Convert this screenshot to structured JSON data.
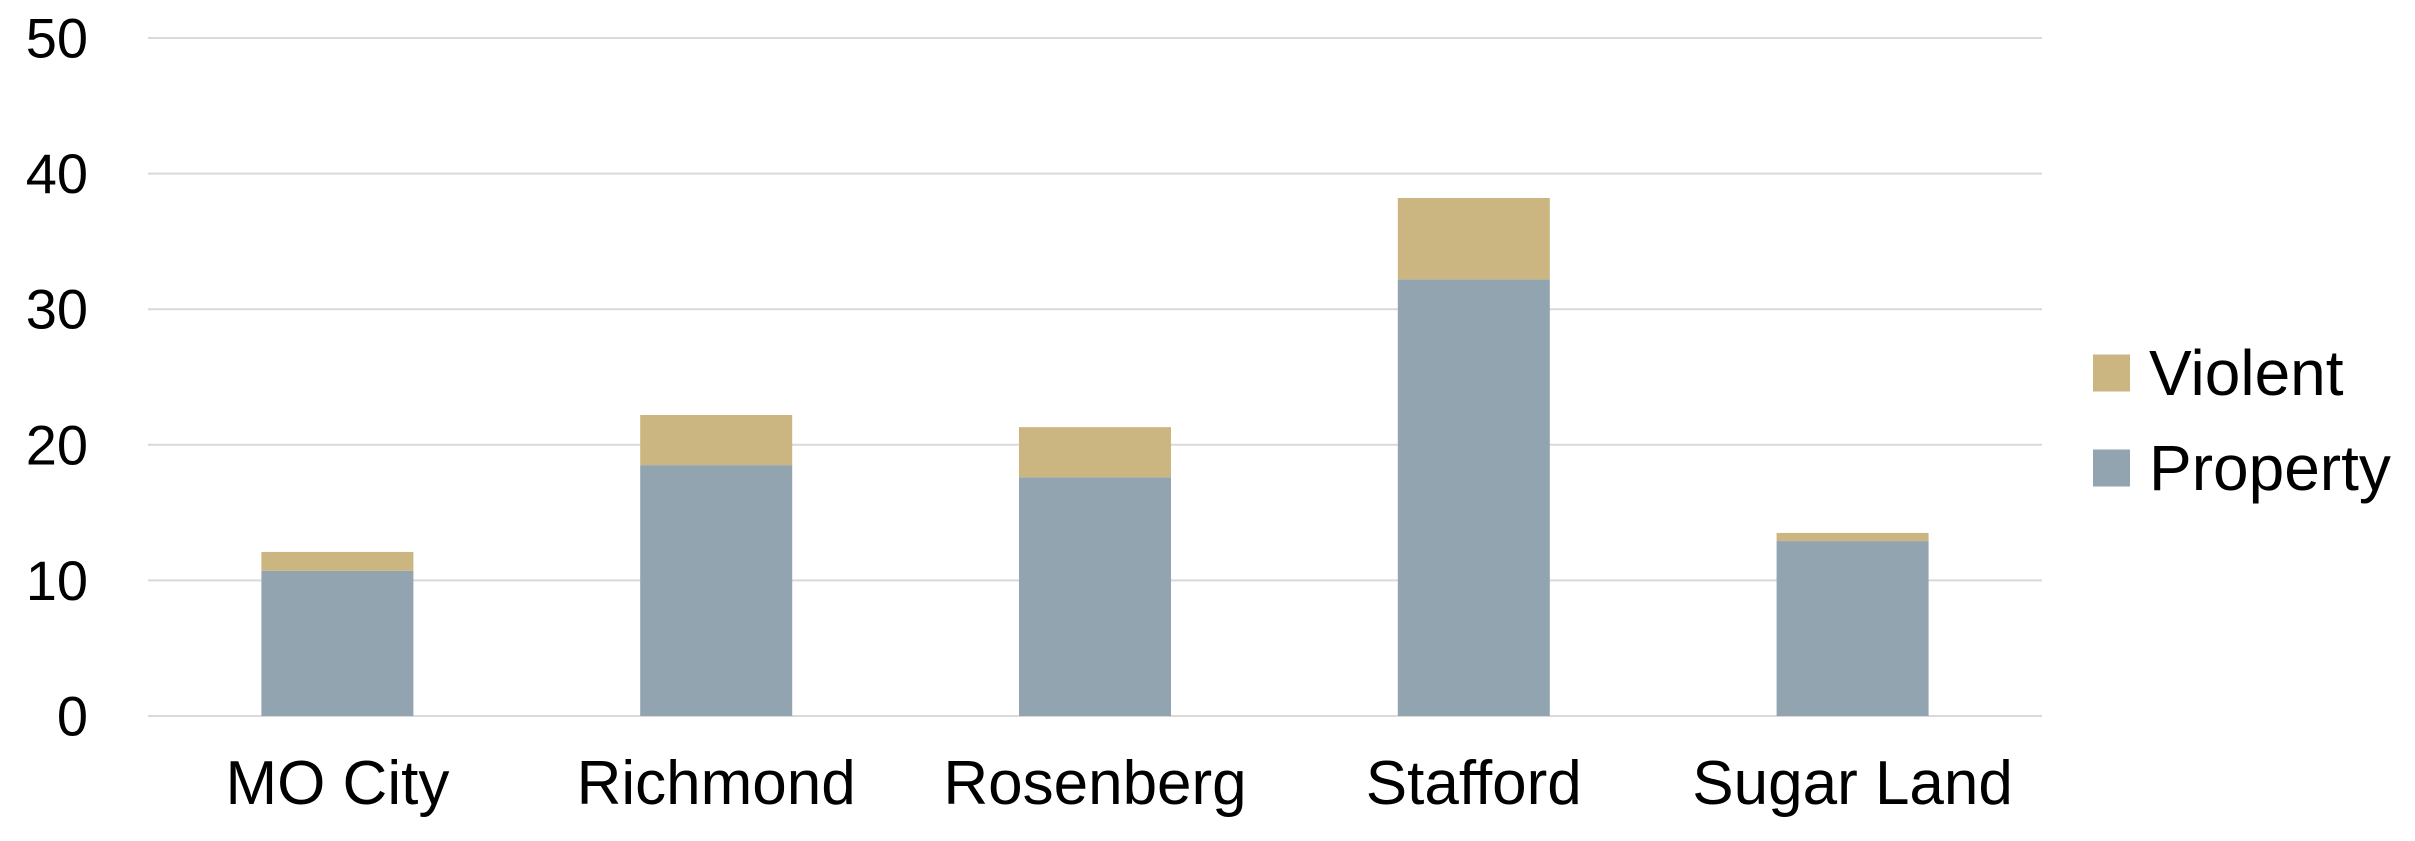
{
  "chart_data": {
    "type": "bar",
    "stacked": true,
    "title": "",
    "xlabel": "",
    "ylabel": "",
    "categories": [
      "MO City",
      "Richmond",
      "Rosenberg",
      "Stafford",
      "Sugar Land"
    ],
    "series": [
      {
        "name": "Property",
        "values": [
          10.7,
          18.5,
          17.6,
          32.2,
          12.9
        ],
        "color": "#91a4b0"
      },
      {
        "name": "Violent",
        "values": [
          1.4,
          3.7,
          3.7,
          6.0,
          0.6
        ],
        "color": "#cbb682"
      }
    ],
    "ylim": [
      0,
      50
    ],
    "yticks": [
      "0",
      "10",
      "20",
      "30",
      "40",
      "50"
    ],
    "grid": true,
    "gridColor": "#d9d9d9",
    "legend": {
      "placement": "right",
      "entries": [
        "Violent",
        "Property"
      ]
    }
  }
}
